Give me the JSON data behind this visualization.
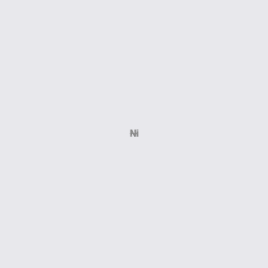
{
  "bg_color": "#e8e8ec",
  "bond_color": "#1a1a1a",
  "N_color": "#1010dd",
  "F_color": "#cc00cc",
  "Ni_color": "#888888",
  "dashed_color": "#888888",
  "figsize": [
    3.0,
    3.0
  ],
  "dpi": 100,
  "xlim": [
    -4.6,
    4.6
  ],
  "ylim": [
    -4.6,
    4.6
  ]
}
